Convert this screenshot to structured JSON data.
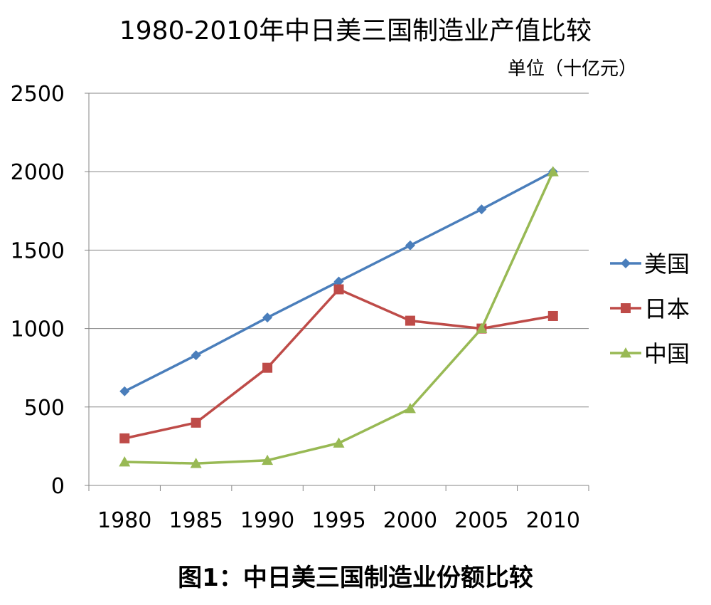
{
  "chart_data": {
    "type": "line",
    "title": "1980-2010年中日美三国制造业产值比较",
    "unit_note": "单位（十亿元）",
    "caption": "图1：中日美三国制造业份额比较",
    "xlabel": "",
    "ylabel": "",
    "x": [
      "1980",
      "1985",
      "1990",
      "1995",
      "2000",
      "2005",
      "2010"
    ],
    "ylim": [
      0,
      2500
    ],
    "yticks": [
      0,
      500,
      1000,
      1500,
      2000,
      2500
    ],
    "grid": true,
    "legend_position": "right",
    "series": [
      {
        "name": "美国",
        "color": "#4a7ebb",
        "marker": "diamond",
        "values": [
          600,
          830,
          1070,
          1300,
          1530,
          1760,
          2000
        ]
      },
      {
        "name": "日本",
        "color": "#be4b48",
        "marker": "square",
        "values": [
          300,
          400,
          750,
          1250,
          1050,
          1000,
          1080
        ]
      },
      {
        "name": "中国",
        "color": "#98b954",
        "marker": "triangle",
        "values": [
          150,
          140,
          160,
          270,
          490,
          1000,
          2000
        ]
      }
    ]
  }
}
